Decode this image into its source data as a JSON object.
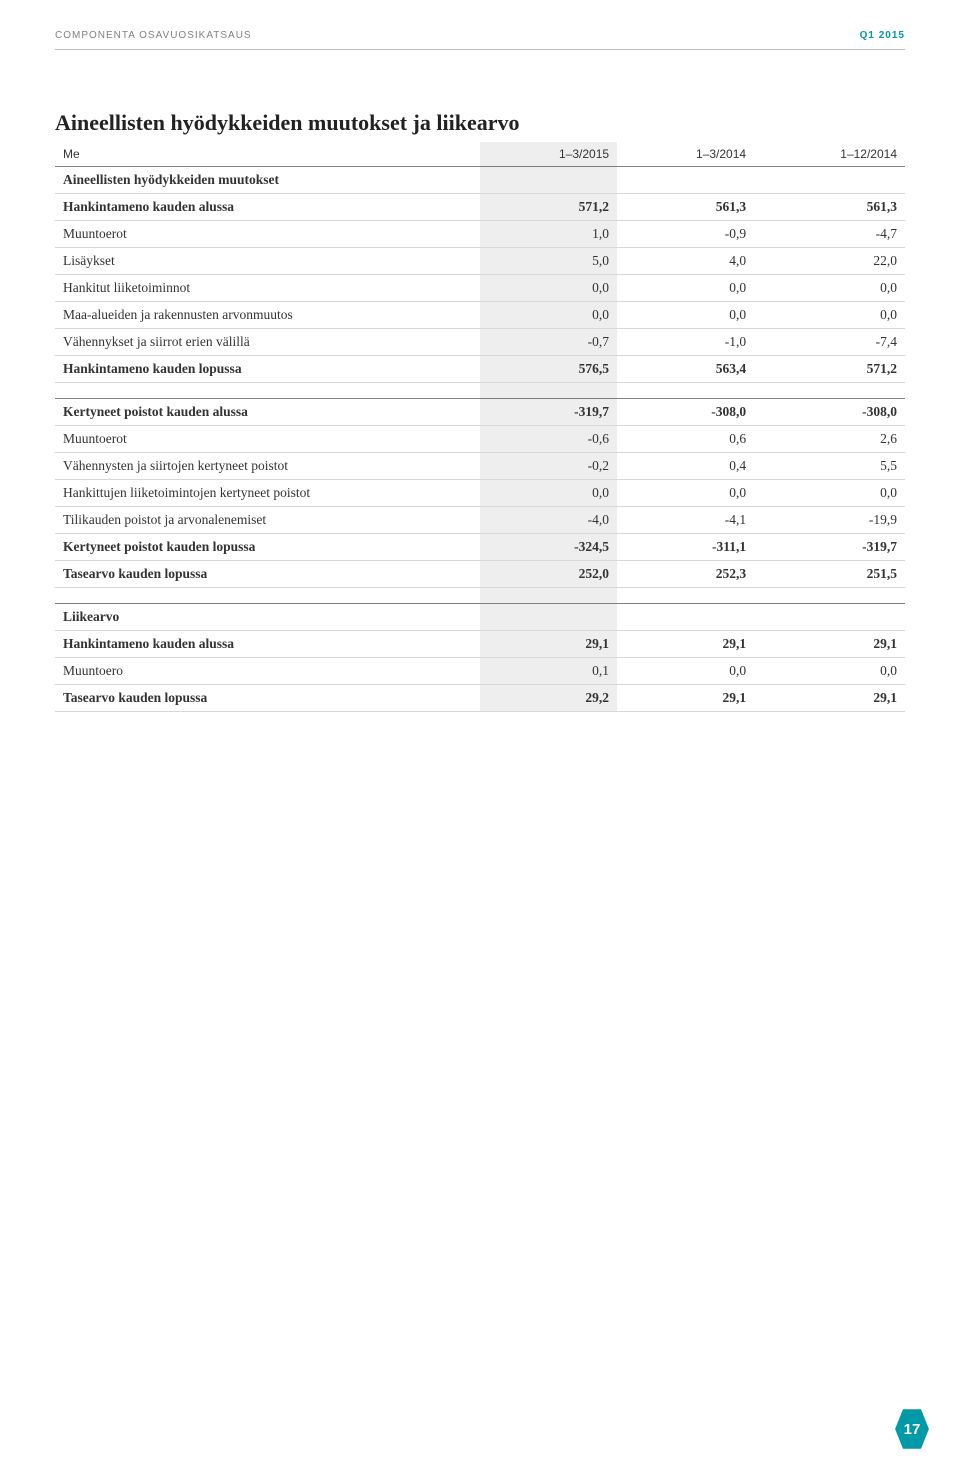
{
  "header": {
    "left": "COMPONENTA OSAVUOSIKATSAUS",
    "right": "Q1 2015"
  },
  "title": "Aineellisten hyödykkeiden muutokset ja liikearvo",
  "columns": {
    "label": "Me",
    "c1": "1–3/2015",
    "c2": "1–3/2014",
    "c3": "1–12/2014"
  },
  "section1": {
    "heading": "Aineellisten hyödykkeiden muutokset",
    "rows": [
      {
        "label": "Hankintameno kauden alussa",
        "bold": true,
        "v": [
          "571,2",
          "561,3",
          "561,3"
        ]
      },
      {
        "label": "Muuntoerot",
        "v": [
          "1,0",
          "-0,9",
          "-4,7"
        ]
      },
      {
        "label": "Lisäykset",
        "v": [
          "5,0",
          "4,0",
          "22,0"
        ]
      },
      {
        "label": "Hankitut liiketoiminnot",
        "v": [
          "0,0",
          "0,0",
          "0,0"
        ]
      },
      {
        "label": "Maa-alueiden ja rakennusten arvonmuutos",
        "v": [
          "0,0",
          "0,0",
          "0,0"
        ]
      },
      {
        "label": "Vähennykset ja siirrot erien välillä",
        "v": [
          "-0,7",
          "-1,0",
          "-7,4"
        ]
      },
      {
        "label": "Hankintameno kauden lopussa",
        "bold": true,
        "v": [
          "576,5",
          "563,4",
          "571,2"
        ]
      }
    ]
  },
  "section2": {
    "rows": [
      {
        "label": "Kertyneet poistot kauden alussa",
        "bold": true,
        "v": [
          "-319,7",
          "-308,0",
          "-308,0"
        ]
      },
      {
        "label": "Muuntoerot",
        "v": [
          "-0,6",
          "0,6",
          "2,6"
        ]
      },
      {
        "label": "Vähennysten ja siirtojen kertyneet poistot",
        "v": [
          "-0,2",
          "0,4",
          "5,5"
        ]
      },
      {
        "label": "Hankittujen liiketoimintojen kertyneet poistot",
        "v": [
          "0,0",
          "0,0",
          "0,0"
        ]
      },
      {
        "label": "Tilikauden poistot ja arvonalenemiset",
        "v": [
          "-4,0",
          "-4,1",
          "-19,9"
        ]
      },
      {
        "label": "Kertyneet poistot kauden lopussa",
        "bold": true,
        "v": [
          "-324,5",
          "-311,1",
          "-319,7"
        ]
      },
      {
        "label": "Tasearvo kauden lopussa",
        "bold": true,
        "v": [
          "252,0",
          "252,3",
          "251,5"
        ]
      }
    ]
  },
  "section3": {
    "heading": "Liikearvo",
    "rows": [
      {
        "label": "Hankintameno kauden alussa",
        "bold": true,
        "v": [
          "29,1",
          "29,1",
          "29,1"
        ]
      },
      {
        "label": "Muuntoero",
        "v": [
          "0,1",
          "0,0",
          "0,0"
        ]
      },
      {
        "label": "Tasearvo kauden lopussa",
        "bold": true,
        "v": [
          "29,2",
          "29,1",
          "29,1"
        ]
      }
    ]
  },
  "page_number": "17",
  "colors": {
    "accent": "#0099a8",
    "shade": "#eeeeee"
  }
}
